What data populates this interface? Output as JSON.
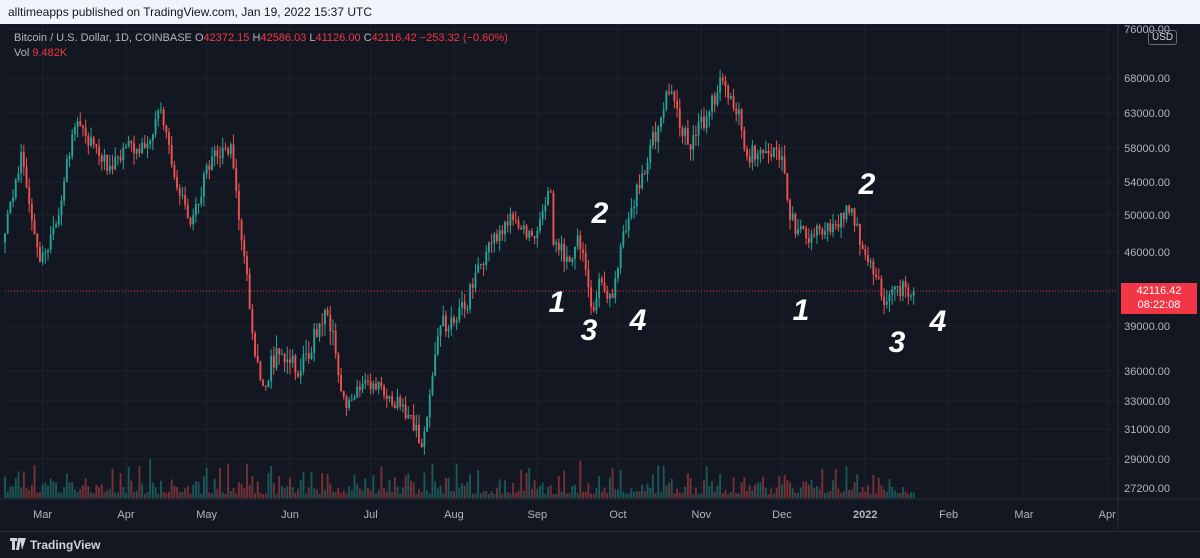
{
  "header": {
    "publisher_text": "alltimeapps published on TradingView.com, Jan 19, 2022 15:37 UTC"
  },
  "legend": {
    "symbol": "Bitcoin / U.S. Dollar, 1D, COINBASE",
    "open_label": "O",
    "open": "42372.15",
    "high_label": "H",
    "high": "42586.03",
    "low_label": "L",
    "low": "41126.00",
    "close_label": "C",
    "close": "42116.42",
    "change": "−253.32 (−0.60%)",
    "vol_label": "Vol",
    "vol_value": "9.482K"
  },
  "price_scale": {
    "currency": "USD"
  },
  "last_price": {
    "price": "42116.42",
    "countdown": "08:22:08"
  },
  "footer": {
    "brand": "TradingView"
  },
  "colors": {
    "up": "#26a69a",
    "down": "#ef5350",
    "background": "#131722",
    "grid": "#1e222d",
    "last_price": "#f23645"
  },
  "chart_data": {
    "type": "candlestick",
    "symbol": "BTCUSD",
    "y_ticks": [
      27200,
      29000,
      31000,
      33000,
      36000,
      39000,
      42116.42,
      46000,
      50000,
      54000,
      58000,
      63000,
      68000,
      76000
    ],
    "y_tick_labels": [
      "27200.00",
      "29000.00",
      "31000.00",
      "33000.00",
      "36000.00",
      "39000.00",
      "42116.42",
      "46000.00",
      "50000.00",
      "54000.00",
      "58000.00",
      "63000.00",
      "68000.00",
      "76000.00"
    ],
    "x_ticks": [
      "Mar",
      "Apr",
      "May",
      "Jun",
      "Jul",
      "Aug",
      "Sep",
      "Oct",
      "Nov",
      "Dec",
      "2022",
      "Feb",
      "Mar",
      "Apr"
    ],
    "x_range": [
      "2021-02-15",
      "2022-04-05"
    ],
    "series_close": [
      [
        "2021-02-15",
        48000
      ],
      [
        "2021-02-21",
        57500
      ],
      [
        "2021-02-28",
        45000
      ],
      [
        "2021-03-06",
        49000
      ],
      [
        "2021-03-13",
        61000
      ],
      [
        "2021-03-20",
        58500
      ],
      [
        "2021-03-27",
        55500
      ],
      [
        "2021-04-02",
        59000
      ],
      [
        "2021-04-08",
        58000
      ],
      [
        "2021-04-14",
        63500
      ],
      [
        "2021-04-18",
        56000
      ],
      [
        "2021-04-25",
        49000
      ],
      [
        "2021-05-03",
        57000
      ],
      [
        "2021-05-10",
        58500
      ],
      [
        "2021-05-13",
        49500
      ],
      [
        "2021-05-19",
        37000
      ],
      [
        "2021-05-22",
        34500
      ],
      [
        "2021-05-27",
        37500
      ],
      [
        "2021-06-05",
        36000
      ],
      [
        "2021-06-15",
        40000
      ],
      [
        "2021-06-22",
        32500
      ],
      [
        "2021-06-30",
        35000
      ],
      [
        "2021-07-08",
        33500
      ],
      [
        "2021-07-15",
        32000
      ],
      [
        "2021-07-20",
        29800
      ],
      [
        "2021-07-27",
        39000
      ],
      [
        "2021-08-05",
        40500
      ],
      [
        "2021-08-14",
        47000
      ],
      [
        "2021-08-23",
        49500
      ],
      [
        "2021-08-31",
        47500
      ],
      [
        "2021-09-06",
        52700
      ],
      [
        "2021-09-07",
        46800
      ],
      [
        "2021-09-13",
        45000
      ],
      [
        "2021-09-16",
        47800
      ],
      [
        "2021-09-21",
        40700
      ],
      [
        "2021-09-25",
        43000
      ],
      [
        "2021-09-29",
        41500
      ],
      [
        "2021-10-03",
        48200
      ],
      [
        "2021-10-10",
        55000
      ],
      [
        "2021-10-16",
        61000
      ],
      [
        "2021-10-20",
        65800
      ],
      [
        "2021-10-27",
        58500
      ],
      [
        "2021-11-03",
        62500
      ],
      [
        "2021-11-09",
        67600
      ],
      [
        "2021-11-15",
        63500
      ],
      [
        "2021-11-18",
        57000
      ],
      [
        "2021-11-24",
        57400
      ],
      [
        "2021-12-01",
        57000
      ],
      [
        "2021-12-04",
        49500
      ],
      [
        "2021-12-10",
        47500
      ],
      [
        "2021-12-15",
        48500
      ],
      [
        "2021-12-21",
        49000
      ],
      [
        "2021-12-27",
        50800
      ],
      [
        "2021-12-31",
        46300
      ],
      [
        "2022-01-05",
        43500
      ],
      [
        "2022-01-07",
        41600
      ],
      [
        "2022-01-10",
        41800
      ],
      [
        "2022-01-13",
        42600
      ],
      [
        "2022-01-19",
        42116.42
      ]
    ],
    "annotations": [
      "1",
      "2",
      "3",
      "4",
      "1",
      "2",
      "3",
      "4"
    ]
  }
}
